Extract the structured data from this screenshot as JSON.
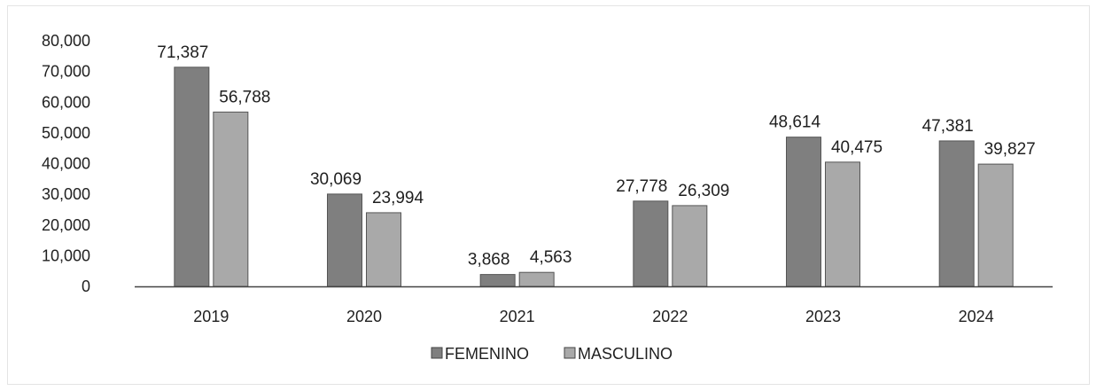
{
  "chart_data": {
    "type": "bar",
    "categories": [
      "2019",
      "2020",
      "2021",
      "2022",
      "2023",
      "2024"
    ],
    "series": [
      {
        "name": "FEMENINO",
        "values": [
          71387,
          30069,
          3868,
          27778,
          48614,
          47381
        ],
        "labels": [
          "71,387",
          "30,069",
          "3,868",
          "27,778",
          "48,614",
          "47,381"
        ],
        "color": "#7f7f7f"
      },
      {
        "name": "MASCULINO",
        "values": [
          56788,
          23994,
          4563,
          26309,
          40475,
          39827
        ],
        "labels": [
          "56,788",
          "23,994",
          "4,563",
          "26,309",
          "40,475",
          "39,827"
        ],
        "color": "#a9a9a9"
      }
    ],
    "ylim": [
      0,
      80000
    ],
    "yticks": [
      0,
      10000,
      20000,
      30000,
      40000,
      50000,
      60000,
      70000,
      80000
    ],
    "ytick_labels": [
      "0",
      "10,000",
      "20,000",
      "30,000",
      "40,000",
      "50,000",
      "60,000",
      "70,000",
      "80,000"
    ],
    "title": "",
    "xlabel": "",
    "ylabel": "",
    "grid": false,
    "legend": "bottom-center"
  }
}
